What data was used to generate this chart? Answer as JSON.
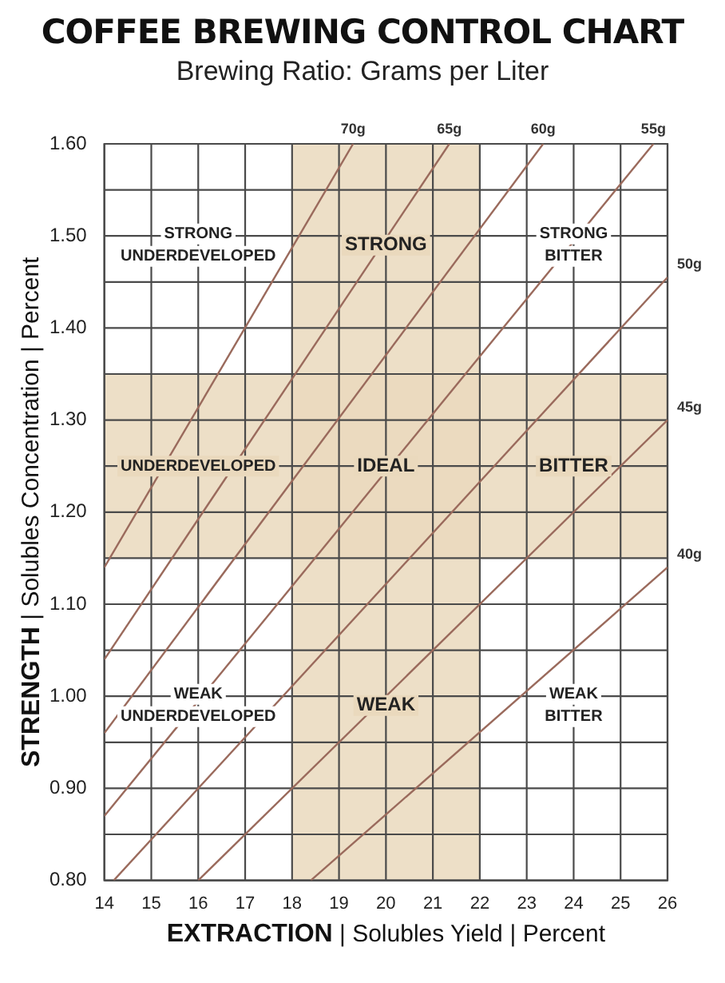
{
  "chart_data": {
    "type": "line",
    "title": "COFFEE BREWING CONTROL CHART",
    "subtitle": "Brewing Ratio: Grams per Liter",
    "xlabel": "EXTRACTION | Solubles Yield | Percent",
    "ylabel": "STRENGTH | Solubles Concentration | Percent",
    "series": [
      {
        "name": "70g",
        "color": "#9a6a5c",
        "x": [
          14,
          19.3
        ],
        "values": [
          1.14,
          1.6
        ]
      },
      {
        "name": "65g",
        "color": "#9a6a5c",
        "x": [
          14,
          21.35
        ],
        "values": [
          1.04,
          1.6
        ]
      },
      {
        "name": "60g",
        "color": "#9a6a5c",
        "x": [
          14,
          23.35
        ],
        "values": [
          0.96,
          1.6
        ]
      },
      {
        "name": "55g",
        "color": "#9a6a5c",
        "x": [
          14,
          25.7
        ],
        "values": [
          0.87,
          1.6
        ]
      },
      {
        "name": "50g",
        "color": "#9a6a5c",
        "x": [
          14.2,
          26
        ],
        "values": [
          0.8,
          1.455
        ]
      },
      {
        "name": "45g",
        "color": "#9a6a5c",
        "x": [
          16,
          26
        ],
        "values": [
          0.8,
          1.3
        ]
      },
      {
        "name": "40g",
        "color": "#9a6a5c",
        "x": [
          18.4,
          26
        ],
        "values": [
          0.8,
          1.14
        ]
      }
    ],
    "xlim": [
      14,
      26
    ],
    "xticks": [
      14,
      15,
      16,
      17,
      18,
      19,
      20,
      21,
      22,
      23,
      24,
      25,
      26
    ],
    "ylim": [
      0.8,
      1.6
    ],
    "yticks": [
      {
        "value": 0.8,
        "label": "0.80"
      },
      {
        "value": 0.85,
        "label": null
      },
      {
        "value": 0.9,
        "label": "0.90"
      },
      {
        "value": 0.95,
        "label": null
      },
      {
        "value": 1.0,
        "label": "1.00"
      },
      {
        "value": 1.05,
        "label": null
      },
      {
        "value": 1.1,
        "label": "1.10"
      },
      {
        "value": 1.15,
        "label": null
      },
      {
        "value": 1.2,
        "label": "1.20"
      },
      {
        "value": 1.25,
        "label": null
      },
      {
        "value": 1.3,
        "label": "1.30"
      },
      {
        "value": 1.35,
        "label": null
      },
      {
        "value": 1.4,
        "label": "1.40"
      },
      {
        "value": 1.45,
        "label": null
      },
      {
        "value": 1.5,
        "label": "1.50"
      },
      {
        "value": 1.55,
        "label": null
      },
      {
        "value": 1.6,
        "label": "1.60"
      }
    ],
    "bands": [
      {
        "axis": "x",
        "from": 18,
        "to": 22,
        "color": "#ead9bd"
      },
      {
        "axis": "y",
        "from": 1.15,
        "to": 1.35,
        "color": "#ead9bd"
      }
    ],
    "annotations": [
      "STRONG\nUNDERDEVELOPED",
      "STRONG",
      "STRONG\nBITTER",
      "UNDERDEVELOPED",
      "IDEAL",
      "BITTER",
      "WEAK\nUNDERDEVELOPED",
      "WEAK",
      "WEAK\nBITTER"
    ],
    "grid": true,
    "legend": false,
    "marker": "none",
    "line_style": "solid"
  }
}
